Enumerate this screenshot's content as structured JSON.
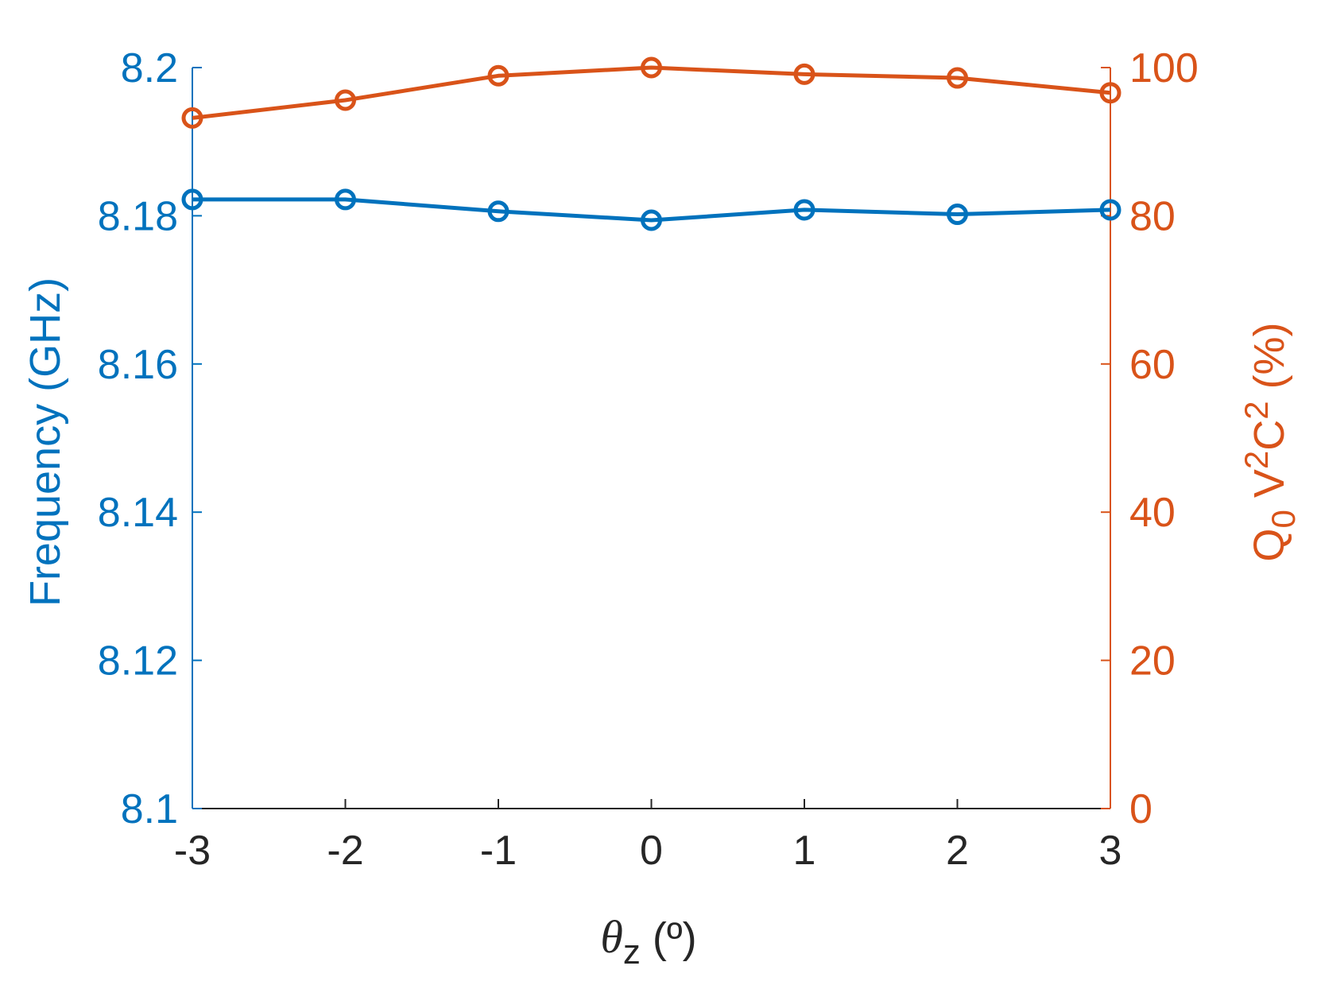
{
  "chart_data": {
    "type": "line",
    "x": [
      -3,
      -2,
      -1,
      0,
      1,
      2,
      3
    ],
    "x_ticks": [
      "-3",
      "-2",
      "-1",
      "0",
      "1",
      "2",
      "3"
    ],
    "xlim": [
      -3,
      3
    ],
    "xlabel": {
      "symbol": "θ",
      "subscript": "z",
      "unit": "(º)"
    },
    "y_left": {
      "label": "Frequency (GHz)",
      "ylim": [
        8.1,
        8.2
      ],
      "ticks": [
        8.1,
        8.12,
        8.14,
        8.16,
        8.18,
        8.2
      ],
      "tick_labels": [
        "8.1",
        "8.12",
        "8.14",
        "8.16",
        "8.18",
        "8.2"
      ],
      "color": "#0072bd"
    },
    "y_right": {
      "label": {
        "q": "Q",
        "q_sub": "0",
        "v": " V",
        "v_sup": "2",
        "c": "C",
        "c_sup": "2",
        "unit": " (%)"
      },
      "ylim": [
        0,
        100
      ],
      "ticks": [
        0,
        20,
        40,
        60,
        80,
        100
      ],
      "tick_labels": [
        "0",
        "20",
        "40",
        "60",
        "80",
        "100"
      ],
      "color": "#d95319"
    },
    "series": [
      {
        "axis": "left",
        "color": "#0072bd",
        "marker": "circle",
        "values": [
          8.1822,
          8.1822,
          8.1806,
          8.1794,
          8.1808,
          8.1802,
          8.1808
        ]
      },
      {
        "axis": "right",
        "color": "#d95319",
        "marker": "circle",
        "values": [
          93.2,
          95.6,
          98.9,
          100.0,
          99.1,
          98.6,
          96.6
        ]
      }
    ],
    "grid": false,
    "box": false
  }
}
